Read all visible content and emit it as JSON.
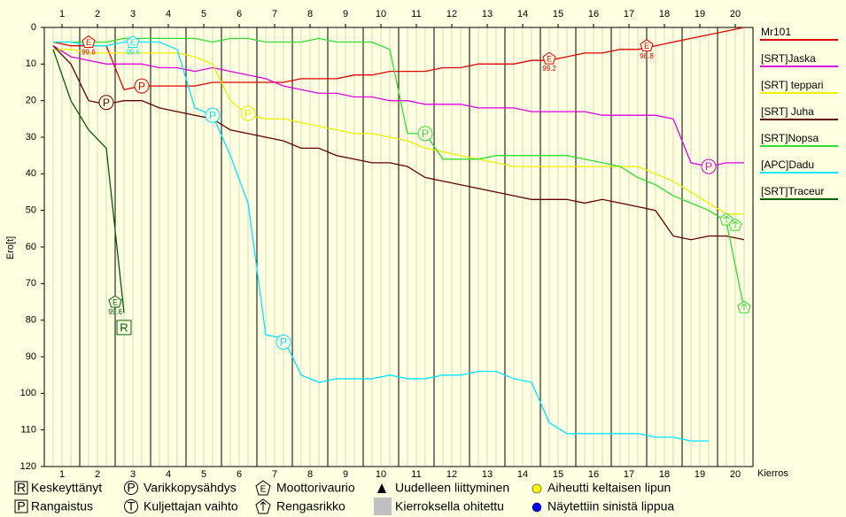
{
  "chart_data": {
    "type": "line",
    "y_label": "Ero[t]",
    "x_label": "Kierros",
    "xlim": [
      0,
      20
    ],
    "ylim": [
      0,
      120
    ],
    "y_inverted": true,
    "xticks": [
      {
        "value": 0.5,
        "label": "1"
      },
      {
        "value": 1.5,
        "label": "2"
      },
      {
        "value": 2.5,
        "label": "3"
      },
      {
        "value": 3.5,
        "label": "4"
      },
      {
        "value": 4.5,
        "label": "5"
      },
      {
        "value": 5.5,
        "label": "6"
      },
      {
        "value": 6.5,
        "label": "7"
      },
      {
        "value": 7.5,
        "label": "8"
      },
      {
        "value": 8.5,
        "label": "9"
      },
      {
        "value": 9.5,
        "label": "10"
      },
      {
        "value": 10.5,
        "label": "11"
      },
      {
        "value": 11.5,
        "label": "12"
      },
      {
        "value": 12.5,
        "label": "13"
      },
      {
        "value": 13.5,
        "label": "14"
      },
      {
        "value": 14.5,
        "label": "15"
      },
      {
        "value": 15.5,
        "label": "16"
      },
      {
        "value": 16.5,
        "label": "17"
      },
      {
        "value": 17.5,
        "label": "18"
      },
      {
        "value": 18.5,
        "label": "19"
      },
      {
        "value": 19.5,
        "label": "20"
      }
    ],
    "yticks": [
      0,
      10,
      20,
      30,
      40,
      50,
      60,
      70,
      80,
      90,
      100,
      110,
      120
    ],
    "x": [
      0.25,
      0.75,
      1.25,
      1.75,
      2.25,
      2.75,
      3.25,
      3.75,
      4.25,
      4.75,
      5.25,
      5.75,
      6.25,
      6.75,
      7.25,
      7.75,
      8.25,
      8.75,
      9.25,
      9.75,
      10.25,
      10.75,
      11.25,
      11.75,
      12.25,
      12.75,
      13.25,
      13.75,
      14.25,
      14.75,
      15.25,
      15.75,
      16.25,
      16.75,
      17.25,
      17.75,
      18.25,
      18.75,
      19.25,
      19.75
    ],
    "series": [
      {
        "name": "Mr101",
        "color": "#e00000",
        "values": [
          4,
          5,
          5,
          5,
          17,
          16,
          16,
          16,
          16,
          15,
          15,
          15,
          15,
          15,
          14,
          14,
          14,
          13,
          13,
          12,
          12,
          12,
          11,
          11,
          10,
          10,
          10,
          9,
          9,
          8,
          7,
          7,
          6,
          6,
          5,
          4,
          3,
          2,
          1,
          0
        ]
      },
      {
        "name": "[SRT]Jaska",
        "color": "#e000e0",
        "values": [
          5,
          8,
          9,
          10,
          10,
          10,
          11,
          11,
          12,
          11,
          12,
          13,
          14,
          16,
          17,
          18,
          18,
          19,
          19,
          20,
          20,
          21,
          21,
          21,
          22,
          22,
          22,
          23,
          23,
          23,
          23,
          24,
          24,
          24,
          24,
          25,
          37,
          38,
          37,
          37
        ]
      },
      {
        "name": "[SRT] teppari",
        "color": "#f0f000",
        "values": [
          6,
          6,
          7,
          7,
          7,
          7,
          7,
          7,
          8,
          10,
          20,
          24,
          25,
          25,
          26,
          27,
          28,
          29,
          29,
          30,
          31,
          33,
          34,
          35,
          36,
          37,
          38,
          38,
          38,
          38,
          38,
          38,
          38,
          38,
          40,
          42,
          45,
          48,
          51,
          51
        ]
      },
      {
        "name": "[SRT] Juha",
        "color": "#600000",
        "values": [
          5,
          10,
          20,
          21,
          20,
          20,
          22,
          23,
          24,
          25,
          28,
          29,
          30,
          31,
          33,
          33,
          35,
          36,
          37,
          37,
          38,
          41,
          42,
          43,
          44,
          45,
          46,
          47,
          47,
          47,
          48,
          47,
          48,
          49,
          50,
          57,
          58,
          57,
          57,
          58
        ]
      },
      {
        "name": "[SRT]Nopsa",
        "color": "#30e030",
        "values": [
          4,
          4,
          4,
          4,
          3,
          3,
          3,
          3,
          3,
          4,
          3,
          3,
          4,
          4,
          4,
          3,
          4,
          4,
          4,
          6,
          29,
          29,
          36,
          36,
          36,
          35,
          35,
          35,
          35,
          35,
          36,
          37,
          38,
          41,
          43,
          46,
          48,
          50,
          53,
          77
        ]
      },
      {
        "name": "[APC]Dadu",
        "color": "#00e8ff",
        "values": [
          4,
          4,
          5,
          5,
          4,
          4,
          4,
          6,
          22,
          24,
          35,
          48,
          84,
          85,
          95,
          97,
          96,
          96,
          96,
          95,
          96,
          96,
          95,
          95,
          94,
          94,
          96,
          97,
          108,
          111,
          111,
          111,
          111,
          111,
          112,
          112,
          113,
          113,
          null,
          null
        ]
      },
      {
        "name": "[SRT]Traceur",
        "color": "#006000",
        "values": [
          6,
          20,
          28,
          33,
          78,
          null,
          null,
          null,
          null,
          null,
          null,
          null,
          null,
          null,
          null,
          null,
          null,
          null,
          null,
          null,
          null,
          null,
          null,
          null,
          null,
          null,
          null,
          null,
          null,
          null,
          null,
          null,
          null,
          null,
          null,
          null,
          null,
          null,
          null,
          null
        ]
      }
    ],
    "annotations": [
      {
        "kind": "engine",
        "symbol": "E",
        "label": "99.6",
        "x": 1.25,
        "y": 4,
        "color": "#e00000"
      },
      {
        "kind": "engine",
        "symbol": "E",
        "label": "99.6",
        "x": 2.5,
        "y": 4,
        "color": "#00e8ff"
      },
      {
        "kind": "pit",
        "symbol": "P",
        "x": 1.75,
        "y": 20.5,
        "color": "#600000"
      },
      {
        "kind": "pit",
        "symbol": "P",
        "x": 2.75,
        "y": 16,
        "color": "#e00000"
      },
      {
        "kind": "pit",
        "symbol": "P",
        "x": 4.75,
        "y": 24,
        "color": "#00e8ff"
      },
      {
        "kind": "pit",
        "symbol": "P",
        "x": 5.75,
        "y": 23.5,
        "color": "#f0f000"
      },
      {
        "kind": "pit",
        "symbol": "P",
        "x": 10.75,
        "y": 29,
        "color": "#30e030"
      },
      {
        "kind": "pit",
        "symbol": "P",
        "x": 6.75,
        "y": 86,
        "color": "#00e8ff"
      },
      {
        "kind": "engine",
        "symbol": "E",
        "label": "99.2",
        "x": 14.25,
        "y": 8.5,
        "color": "#e00000"
      },
      {
        "kind": "engine",
        "symbol": "E",
        "label": "98.8",
        "x": 17,
        "y": 5,
        "color": "#e00000"
      },
      {
        "kind": "pit",
        "symbol": "P",
        "x": 18.75,
        "y": 38,
        "color": "#e000e0"
      },
      {
        "kind": "tyre",
        "x": 19.25,
        "y": 52.5,
        "color": "#30e030"
      },
      {
        "kind": "tyre",
        "x": 19.5,
        "y": 54,
        "color": "#30e030"
      },
      {
        "kind": "tyre",
        "x": 19.75,
        "y": 76.5,
        "color": "#30e030"
      },
      {
        "kind": "engine",
        "symbol": "E",
        "label": "99.6",
        "x": 2,
        "y": 75,
        "color": "#006000"
      },
      {
        "kind": "retired",
        "symbol": "R",
        "x": 2.25,
        "y": 82,
        "color": "#006000"
      }
    ]
  },
  "key": [
    {
      "symbol": "R",
      "text": "Keskeyttänyt"
    },
    {
      "symbol": "P",
      "text": "Rangaistus"
    },
    {
      "symbol": "P",
      "text": "Varikkopysähdys"
    },
    {
      "symbol": "T",
      "text": "Kuljettajan vaihto"
    },
    {
      "symbol": "E",
      "text": "Moottorivaurio"
    },
    {
      "text": "Rengasrikko"
    },
    {
      "text": "Uudelleen liittyminen"
    },
    {
      "text": "Kierroksella ohitettu"
    },
    {
      "text": "Aiheutti keltaisen lipun"
    },
    {
      "text": "Näytettiin sinistä lippua"
    }
  ]
}
